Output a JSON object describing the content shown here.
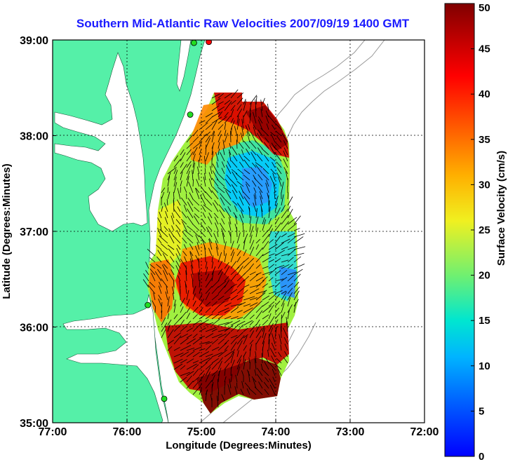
{
  "chart_data": {
    "type": "map",
    "title": "Southern Mid-Atlantic Raw Velocities 2007/09/19 1400 GMT",
    "xlabel": "Longitude (Degrees:Minutes)",
    "ylabel": "Latitude (Degrees:Minutes)",
    "xlim": [
      -77,
      -72
    ],
    "ylim": [
      35,
      39
    ],
    "x_ticks": [
      {
        "value": -77,
        "label": "77:00"
      },
      {
        "value": -76,
        "label": "76:00"
      },
      {
        "value": -75,
        "label": "75:00"
      },
      {
        "value": -74,
        "label": "74:00"
      },
      {
        "value": -73,
        "label": "73:00"
      },
      {
        "value": -72,
        "label": "72:00"
      }
    ],
    "y_ticks": [
      {
        "value": 35,
        "label": "35:00"
      },
      {
        "value": 36,
        "label": "36:00"
      },
      {
        "value": 37,
        "label": "37:00"
      },
      {
        "value": 38,
        "label": "38:00"
      },
      {
        "value": 39,
        "label": "39:00"
      }
    ],
    "colorbar": {
      "label": "Surface Velocity (cm/s)",
      "range": [
        0,
        50
      ],
      "ticks": [
        0,
        5,
        10,
        15,
        20,
        25,
        30,
        35,
        40,
        45,
        50
      ]
    },
    "grid": true,
    "land_color": "#55f0a8",
    "stations": [
      {
        "lon": -74.9,
        "lat": 38.98,
        "color": "#ff0000"
      },
      {
        "lon": -75.1,
        "lat": 38.97,
        "color": "#22dd22"
      },
      {
        "lon": -75.15,
        "lat": 38.22,
        "color": "#22dd22"
      },
      {
        "lon": -75.72,
        "lat": 36.23,
        "color": "#22dd22"
      },
      {
        "lon": -75.5,
        "lat": 35.25,
        "color": "#22dd22"
      }
    ]
  }
}
